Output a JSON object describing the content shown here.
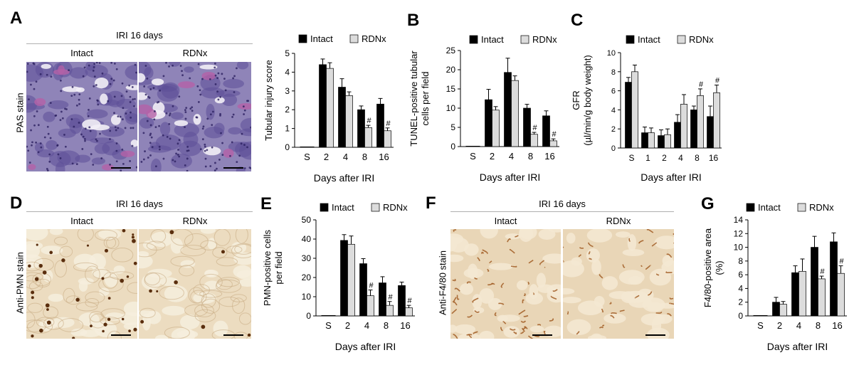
{
  "panels": {
    "A": {
      "label": "A",
      "title": "IRI 16 days",
      "left": "Intact",
      "right": "RDNx",
      "side": "PAS stain"
    },
    "D": {
      "label": "D",
      "title": "IRI 16 days",
      "left": "Intact",
      "right": "RDNx",
      "side": "Anti-PMN stain"
    },
    "F": {
      "label": "F",
      "title": "IRI 16 days",
      "left": "Intact",
      "right": "RDNx",
      "side": "Anti-F4/80 stain"
    }
  },
  "colors": {
    "intact": "#000000",
    "rdnx": "#dcdcdc",
    "pas_bg": "#8f84b8",
    "pas_tissue": "#5d4f97",
    "pas_pink": "#b462a8",
    "dab_bg": "#ecdcc0",
    "dab_light": "#f6eedd",
    "dab_brown": "#5a2e0e",
    "f480_bg": "#e9d6b7",
    "f480_brown": "#a05a22"
  },
  "chart_data": [
    {
      "id": "chart-tubular-injury",
      "label": "",
      "type": "bar",
      "categories": [
        "S",
        "2",
        "4",
        "8",
        "16"
      ],
      "series": [
        {
          "name": "Intact",
          "values": [
            0,
            4.4,
            3.2,
            2.0,
            2.3
          ],
          "errors": [
            0,
            0.3,
            0.45,
            0.2,
            0.3
          ],
          "sig": [
            false,
            false,
            false,
            false,
            false
          ]
        },
        {
          "name": "RDNx",
          "values": [
            0,
            4.2,
            2.75,
            1.05,
            0.88
          ],
          "errors": [
            0,
            0.3,
            0.2,
            0.12,
            0.15
          ],
          "sig": [
            false,
            false,
            false,
            true,
            true
          ]
        }
      ],
      "ylabel": "Tubular injury score",
      "xlabel": "Days after IRI",
      "ylim": [
        0,
        5
      ],
      "yticks": [
        0,
        1,
        2,
        3,
        4,
        5
      ],
      "sig_mark": "#",
      "legend": "top"
    },
    {
      "id": "chart-tunel",
      "label": "B",
      "type": "bar",
      "categories": [
        "S",
        "2",
        "4",
        "8",
        "16"
      ],
      "series": [
        {
          "name": "Intact",
          "values": [
            0,
            12.2,
            19.3,
            10.0,
            8.0
          ],
          "errors": [
            0,
            2.7,
            3.7,
            1.0,
            1.3
          ],
          "sig": [
            false,
            false,
            false,
            false,
            false
          ]
        },
        {
          "name": "RDNx",
          "values": [
            0,
            9.5,
            17.2,
            3.2,
            1.5
          ],
          "errors": [
            0,
            0.9,
            1.2,
            0.5,
            0.5
          ],
          "sig": [
            false,
            false,
            false,
            true,
            true
          ]
        }
      ],
      "ylabel": "TUNEL-positive tubular cells per field",
      "ylabel_lines": [
        "TUNEL-positive tubular",
        "cells per field"
      ],
      "xlabel": "Days after IRI",
      "ylim": [
        0,
        25
      ],
      "yticks": [
        0,
        5,
        10,
        15,
        20,
        25
      ],
      "sig_mark": "#",
      "legend": "top"
    },
    {
      "id": "chart-gfr",
      "label": "C",
      "type": "bar",
      "categories": [
        "S",
        "1",
        "2",
        "4",
        "8",
        "16"
      ],
      "series": [
        {
          "name": "Intact",
          "values": [
            6.9,
            1.6,
            1.3,
            2.7,
            4.0,
            3.3
          ],
          "errors": [
            0.5,
            0.6,
            0.6,
            0.8,
            0.4,
            1.1
          ],
          "sig": [
            false,
            false,
            false,
            false,
            false,
            false
          ]
        },
        {
          "name": "RDNx",
          "values": [
            8.0,
            1.6,
            1.4,
            4.6,
            5.5,
            5.8
          ],
          "errors": [
            0.7,
            0.5,
            0.6,
            1.0,
            0.7,
            0.8
          ],
          "sig": [
            false,
            false,
            false,
            false,
            true,
            true
          ]
        }
      ],
      "ylabel": "GFR (µl/min/g body weight)",
      "ylabel_lines": [
        "GFR",
        "(µl/min/g body weight)"
      ],
      "xlabel": "Days after IRI",
      "ylim": [
        0,
        10
      ],
      "yticks": [
        0,
        2,
        4,
        6,
        8,
        10
      ],
      "sig_mark": "#",
      "legend": "top"
    },
    {
      "id": "chart-pmn",
      "label": "E",
      "type": "bar",
      "categories": [
        "S",
        "2",
        "4",
        "8",
        "16"
      ],
      "series": [
        {
          "name": "Intact",
          "values": [
            0,
            39.3,
            27.2,
            17.2,
            15.8
          ],
          "errors": [
            0,
            3.0,
            2.6,
            3.2,
            1.8
          ],
          "sig": [
            false,
            false,
            false,
            false,
            false
          ]
        },
        {
          "name": "RDNx",
          "values": [
            0,
            37.3,
            10.5,
            5.5,
            4.2
          ],
          "errors": [
            0,
            4.3,
            3.0,
            2.0,
            1.3
          ],
          "sig": [
            false,
            false,
            true,
            true,
            true
          ]
        }
      ],
      "ylabel": "PMN-positive cells per field",
      "ylabel_lines": [
        "PMN-positive cells",
        "per field"
      ],
      "xlabel": "Days after IRI",
      "ylim": [
        0,
        50
      ],
      "yticks": [
        0,
        10,
        20,
        30,
        40,
        50
      ],
      "sig_mark": "#",
      "legend": "top"
    },
    {
      "id": "chart-f480",
      "label": "G",
      "type": "bar",
      "categories": [
        "S",
        "2",
        "4",
        "8",
        "16"
      ],
      "series": [
        {
          "name": "Intact",
          "values": [
            0,
            2.0,
            6.3,
            10.0,
            10.8
          ],
          "errors": [
            0,
            0.7,
            1.0,
            1.6,
            1.3
          ],
          "sig": [
            false,
            false,
            false,
            false,
            false
          ]
        },
        {
          "name": "RDNx",
          "values": [
            0,
            1.7,
            6.5,
            5.4,
            6.2
          ],
          "errors": [
            0,
            0.4,
            1.8,
            0.4,
            1.1
          ],
          "sig": [
            false,
            false,
            false,
            true,
            true
          ]
        }
      ],
      "ylabel": "F4/80-positive area (%)",
      "ylabel_lines": [
        "F4/80-positive area",
        "(%)"
      ],
      "xlabel": "Days after IRI",
      "ylim": [
        0,
        14
      ],
      "yticks": [
        0,
        2,
        4,
        6,
        8,
        10,
        12,
        14
      ],
      "sig_mark": "#",
      "legend": "top"
    }
  ]
}
